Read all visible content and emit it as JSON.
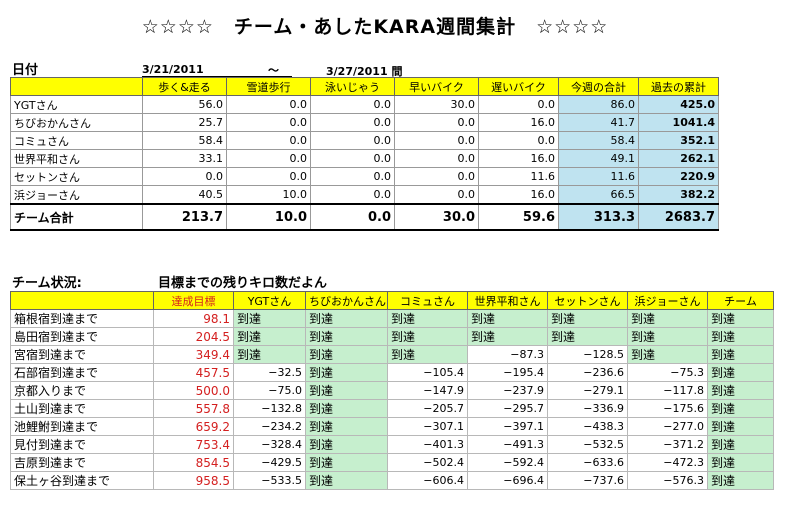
{
  "title": "☆☆☆☆　チーム・あしたKARA週間集計　☆☆☆☆",
  "date_label": "日付",
  "date_start": "3/21/2011",
  "date_sep": "～",
  "date_end": "3/27/2011 間",
  "summary": {
    "headers": [
      "歩く&走る",
      "雪道歩行",
      "泳いじゃう",
      "早いバイク",
      "遅いバイク",
      "今週の合計",
      "過去の累計"
    ],
    "rows": [
      {
        "name": "YGTさん",
        "values": [
          "56.0",
          "0.0",
          "0.0",
          "30.0",
          "0.0",
          "86.0",
          "425.0"
        ]
      },
      {
        "name": "ちびおかんさん",
        "values": [
          "25.7",
          "0.0",
          "0.0",
          "0.0",
          "16.0",
          "41.7",
          "1041.4"
        ]
      },
      {
        "name": "コミュさん",
        "values": [
          "58.4",
          "0.0",
          "0.0",
          "0.0",
          "0.0",
          "58.4",
          "352.1"
        ]
      },
      {
        "name": "世界平和さん",
        "values": [
          "33.1",
          "0.0",
          "0.0",
          "0.0",
          "16.0",
          "49.1",
          "262.1"
        ]
      },
      {
        "name": "セットンさん",
        "values": [
          "0.0",
          "0.0",
          "0.0",
          "0.0",
          "11.6",
          "11.6",
          "220.9"
        ]
      },
      {
        "name": "浜ジョーさん",
        "values": [
          "40.5",
          "10.0",
          "0.0",
          "0.0",
          "16.0",
          "66.5",
          "382.2"
        ]
      }
    ],
    "total": {
      "name": "チーム合計",
      "values": [
        "213.7",
        "10.0",
        "0.0",
        "30.0",
        "59.6",
        "313.3",
        "2683.7"
      ]
    }
  },
  "status": {
    "label": "チーム状況:",
    "subtitle": "目標までの残りキロ数だよん",
    "headers": [
      "",
      "達成目標",
      "YGTさん",
      "ちびおかんさん",
      "コミュさん",
      "世界平和さん",
      "セットンさん",
      "浜ジョーさん",
      "チーム"
    ],
    "rows": [
      {
        "place": "箱根宿到達まで",
        "goal": "98.1",
        "cells": [
          "到達",
          "到達",
          "到達",
          "到達",
          "到達",
          "到達",
          "到達"
        ]
      },
      {
        "place": "島田宿到達まで",
        "goal": "204.5",
        "cells": [
          "到達",
          "到達",
          "到達",
          "到達",
          "到達",
          "到達",
          "到達"
        ]
      },
      {
        "place": "宮宿到達まで",
        "goal": "349.4",
        "cells": [
          "到達",
          "到達",
          "到達",
          "−87.3",
          "−128.5",
          "到達",
          "到達"
        ]
      },
      {
        "place": "石部宿到達まで",
        "goal": "457.5",
        "cells": [
          "−32.5",
          "到達",
          "−105.4",
          "−195.4",
          "−236.6",
          "−75.3",
          "到達"
        ]
      },
      {
        "place": "京都入りまで",
        "goal": "500.0",
        "cells": [
          "−75.0",
          "到達",
          "−147.9",
          "−237.9",
          "−279.1",
          "−117.8",
          "到達"
        ]
      },
      {
        "place": "土山到達まで",
        "goal": "557.8",
        "cells": [
          "−132.8",
          "到達",
          "−205.7",
          "−295.7",
          "−336.9",
          "−175.6",
          "到達"
        ]
      },
      {
        "place": "池鯉鮒到達まで",
        "goal": "659.2",
        "cells": [
          "−234.2",
          "到達",
          "−307.1",
          "−397.1",
          "−438.3",
          "−277.0",
          "到達"
        ]
      },
      {
        "place": "見付到達まで",
        "goal": "753.4",
        "cells": [
          "−328.4",
          "到達",
          "−401.3",
          "−491.3",
          "−532.5",
          "−371.2",
          "到達"
        ]
      },
      {
        "place": "吉原到達まで",
        "goal": "854.5",
        "cells": [
          "−429.5",
          "到達",
          "−502.4",
          "−592.4",
          "−633.6",
          "−472.3",
          "到達"
        ]
      },
      {
        "place": "保土ヶ谷到達まで",
        "goal": "958.5",
        "cells": [
          "−533.5",
          "到達",
          "−606.4",
          "−696.4",
          "−737.6",
          "−576.3",
          "到達"
        ]
      }
    ]
  },
  "colors": {
    "header": "#ffff00",
    "blue": "#bfe3f0",
    "green": "#c6efce",
    "goal": "#d42020"
  }
}
